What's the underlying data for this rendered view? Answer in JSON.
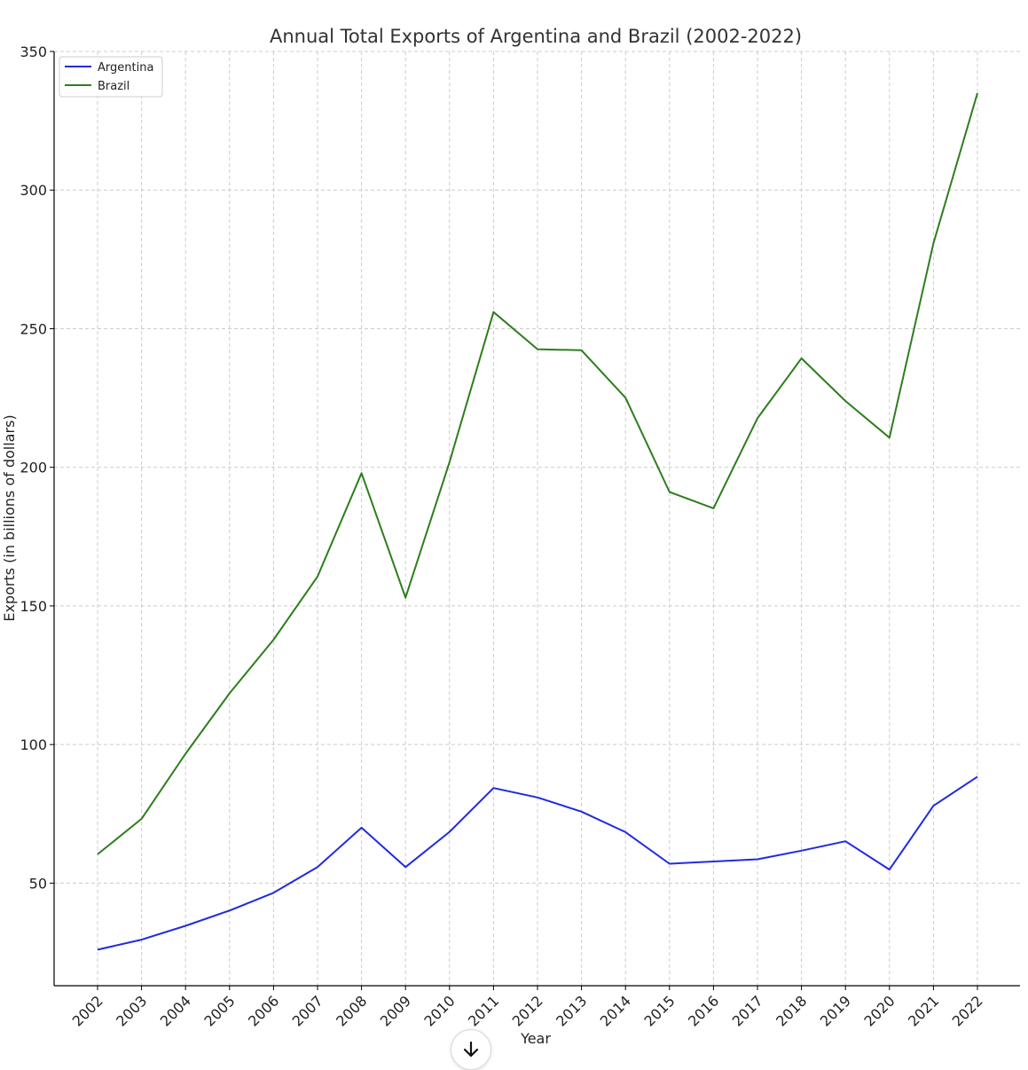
{
  "chart_data": {
    "type": "line",
    "title": "Annual Total Exports of Argentina and Brazil (2002-2022)",
    "xlabel": "Year",
    "ylabel": "Exports (in billions of dollars)",
    "x": [
      "2002",
      "2003",
      "2004",
      "2005",
      "2006",
      "2007",
      "2008",
      "2009",
      "2010",
      "2011",
      "2012",
      "2013",
      "2014",
      "2015",
      "2016",
      "2017",
      "2018",
      "2019",
      "2020",
      "2021",
      "2022"
    ],
    "yticks": [
      50,
      100,
      150,
      200,
      250,
      300,
      350
    ],
    "ylim": [
      13,
      350
    ],
    "grid": true,
    "legend_position": "top-left",
    "series": [
      {
        "name": "Argentina",
        "color": "#1f2be0",
        "values": [
          26,
          29.6,
          34.6,
          40.1,
          46.5,
          55.8,
          70.0,
          55.8,
          68.5,
          84.3,
          80.9,
          75.8,
          68.4,
          57.0,
          57.8,
          58.6,
          61.7,
          65.1,
          54.9,
          77.9,
          88.4
        ]
      },
      {
        "name": "Brazil",
        "color": "#2e7d1e",
        "values": [
          60.4,
          73.2,
          96.7,
          118.5,
          137.8,
          160.6,
          197.9,
          153.0,
          201.9,
          256.0,
          242.6,
          242.2,
          225.1,
          191.1,
          185.2,
          217.7,
          239.3,
          223.9,
          210.7,
          280.8,
          335.0
        ]
      }
    ]
  },
  "ui": {
    "scroll_icon": "arrow-down-icon"
  }
}
